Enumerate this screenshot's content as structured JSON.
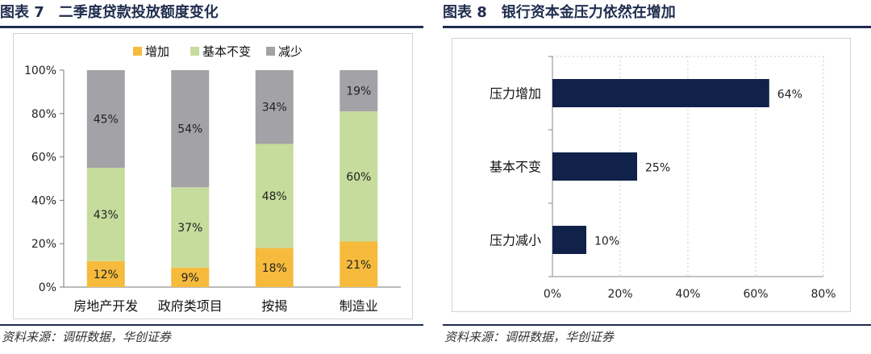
{
  "colors": {
    "increase": "#f6bb3c",
    "unchanged": "#c5dc9c",
    "decrease": "#a3a2a7",
    "bar_navy": "#10214a",
    "title": "#1f2d4e"
  },
  "left": {
    "fig_label": "图表 7",
    "fig_title": "二季度贷款投放额度变化",
    "source": "资料来源：调研数据，华创证券"
  },
  "right": {
    "fig_label": "图表 8",
    "fig_title": "银行资本金压力依然在增加",
    "source": "资料来源：调研数据，华创证券"
  },
  "chart_data": [
    {
      "type": "bar",
      "stacked": true,
      "percent": true,
      "title": "二季度贷款投放额度变化",
      "categories": [
        "房地产开发",
        "政府类项目",
        "按揭",
        "制造业"
      ],
      "series": [
        {
          "name": "增加",
          "values": [
            12,
            9,
            18,
            21
          ],
          "labels": [
            "12%",
            "9%",
            "18%",
            "21%"
          ]
        },
        {
          "name": "基本不变",
          "values": [
            43,
            37,
            48,
            60
          ],
          "labels": [
            "43%",
            "37%",
            "48%",
            "60%"
          ]
        },
        {
          "name": "减少",
          "values": [
            45,
            54,
            34,
            19
          ],
          "labels": [
            "45%",
            "54%",
            "34%",
            "19%"
          ]
        }
      ],
      "ylim": [
        0,
        100
      ],
      "yticks": [
        "0%",
        "20%",
        "40%",
        "60%",
        "80%",
        "100%"
      ],
      "legend": "top"
    },
    {
      "type": "bar",
      "orientation": "horizontal",
      "title": "银行资本金压力依然在增加",
      "categories": [
        "压力增加",
        "基本不变",
        "压力减小"
      ],
      "values": [
        64,
        25,
        10
      ],
      "labels": [
        "64%",
        "25%",
        "10%"
      ],
      "xlim": [
        0,
        80
      ],
      "xticks": [
        "0%",
        "20%",
        "40%",
        "60%",
        "80%"
      ],
      "grid": true
    }
  ]
}
